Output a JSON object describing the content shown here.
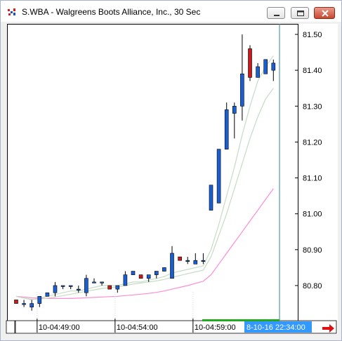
{
  "window": {
    "title": "S.WBA - Walgreens Boots Alliance, Inc., 30 Sec",
    "icon": "chart-app-icon",
    "controls": [
      "minimize-icon",
      "restore-icon",
      "close-icon"
    ]
  },
  "colors": {
    "up_candle": "#1a5fd1",
    "down_candle": "#c81c1c",
    "wick": "#000000",
    "ma_fast": "#c4dcc4",
    "ma_slow": "#ff8cd2",
    "cursor_line": "#2b8a9a",
    "cursor_label_bg": "#3399ff",
    "green_marker": "#22aa22",
    "arrow": "#e01010"
  },
  "chart_data": {
    "type": "candlestick",
    "title": "S.WBA - Walgreens Boots Alliance, Inc., 30 Sec",
    "ylim": [
      80.7,
      81.55
    ],
    "yticks": [
      "81.50",
      "81.40",
      "81.30",
      "81.20",
      "81.10",
      "81.00",
      "80.90",
      "80.80"
    ],
    "x_tick_labels": [
      "10-04:49:00",
      "10-04:54:00",
      "10-04:59:00"
    ],
    "x_tick_index": [
      3.5,
      13.5,
      23.5
    ],
    "cursor_label": "8-10-16 22:34:00",
    "candles": [
      {
        "o": 80.76,
        "h": 80.76,
        "l": 80.75,
        "c": 80.75
      },
      {
        "o": 80.75,
        "h": 80.76,
        "l": 80.74,
        "c": 80.75
      },
      {
        "o": 80.74,
        "h": 80.76,
        "l": 80.73,
        "c": 80.75
      },
      {
        "o": 80.75,
        "h": 80.77,
        "l": 80.74,
        "c": 80.77
      },
      {
        "o": 80.77,
        "h": 80.78,
        "l": 80.77,
        "c": 80.78
      },
      {
        "o": 80.78,
        "h": 80.81,
        "l": 80.77,
        "c": 80.8
      },
      {
        "o": 80.8,
        "h": 80.8,
        "l": 80.79,
        "c": 80.8
      },
      {
        "o": 80.8,
        "h": 80.8,
        "l": 80.79,
        "c": 80.8
      },
      {
        "o": 80.79,
        "h": 80.8,
        "l": 80.78,
        "c": 80.79
      },
      {
        "o": 80.78,
        "h": 80.83,
        "l": 80.77,
        "c": 80.82
      },
      {
        "o": 80.81,
        "h": 80.82,
        "l": 80.81,
        "c": 80.81
      },
      {
        "o": 80.81,
        "h": 80.81,
        "l": 80.8,
        "c": 80.81
      },
      {
        "o": 80.8,
        "h": 80.8,
        "l": 80.79,
        "c": 80.79
      },
      {
        "o": 80.79,
        "h": 80.8,
        "l": 80.78,
        "c": 80.8
      },
      {
        "o": 80.8,
        "h": 80.84,
        "l": 80.8,
        "c": 80.83
      },
      {
        "o": 80.83,
        "h": 80.84,
        "l": 80.83,
        "c": 80.84
      },
      {
        "o": 80.83,
        "h": 80.83,
        "l": 80.82,
        "c": 80.82
      },
      {
        "o": 80.82,
        "h": 80.83,
        "l": 80.81,
        "c": 80.83
      },
      {
        "o": 80.83,
        "h": 80.84,
        "l": 80.82,
        "c": 80.84
      },
      {
        "o": 80.84,
        "h": 80.85,
        "l": 80.84,
        "c": 80.85
      },
      {
        "o": 80.82,
        "h": 80.91,
        "l": 80.82,
        "c": 80.89
      },
      {
        "o": 80.88,
        "h": 80.88,
        "l": 80.87,
        "c": 80.87
      },
      {
        "o": 80.87,
        "h": 80.88,
        "l": 80.86,
        "c": 80.87
      },
      {
        "o": 80.86,
        "h": 80.89,
        "l": 80.86,
        "c": 80.87
      },
      {
        "o": 80.87,
        "h": 80.89,
        "l": 80.86,
        "c": 80.87
      },
      {
        "o": 81.01,
        "h": 81.08,
        "l": 81.01,
        "c": 81.08
      },
      {
        "o": 81.03,
        "h": 81.18,
        "l": 81.03,
        "c": 81.18
      },
      {
        "o": 81.18,
        "h": 81.31,
        "l": 81.18,
        "c": 81.29
      },
      {
        "o": 81.28,
        "h": 81.31,
        "l": 81.21,
        "c": 81.3
      },
      {
        "o": 81.3,
        "h": 81.5,
        "l": 81.26,
        "c": 81.39
      },
      {
        "o": 81.46,
        "h": 81.47,
        "l": 81.37,
        "c": 81.38
      },
      {
        "o": 81.38,
        "h": 81.42,
        "l": 81.38,
        "c": 81.41
      },
      {
        "o": 81.39,
        "h": 81.43,
        "l": 81.39,
        "c": 81.43
      },
      {
        "o": 81.4,
        "h": 81.43,
        "l": 81.37,
        "c": 81.42
      }
    ],
    "ma_fast": [
      80.77,
      80.765,
      80.76,
      80.765,
      80.77,
      80.775,
      80.78,
      80.785,
      80.785,
      80.79,
      80.795,
      80.8,
      80.8,
      80.8,
      80.805,
      80.81,
      80.81,
      80.815,
      80.82,
      80.825,
      80.835,
      80.84,
      80.845,
      80.85,
      80.855,
      80.9,
      80.97,
      81.05,
      81.13,
      81.22,
      81.3,
      81.37,
      81.41,
      81.44
    ],
    "ma_fast2": [
      80.77,
      80.765,
      80.762,
      80.762,
      80.765,
      80.768,
      80.772,
      80.776,
      80.78,
      80.784,
      80.788,
      80.792,
      80.794,
      80.796,
      80.8,
      80.804,
      80.807,
      80.81,
      80.813,
      80.817,
      80.823,
      80.828,
      80.833,
      80.838,
      80.843,
      80.88,
      80.94,
      81.0,
      81.07,
      81.14,
      81.21,
      81.27,
      81.32,
      81.35
    ],
    "ma_slow": [
      80.77,
      80.768,
      80.766,
      80.765,
      80.764,
      80.764,
      80.764,
      80.764,
      80.765,
      80.766,
      80.767,
      80.768,
      80.769,
      80.77,
      80.772,
      80.774,
      80.776,
      80.778,
      80.781,
      80.785,
      80.79,
      80.795,
      80.8,
      80.806,
      80.812,
      80.83,
      80.86,
      80.89,
      80.92,
      80.95,
      80.98,
      81.01,
      81.04,
      81.07
    ]
  }
}
